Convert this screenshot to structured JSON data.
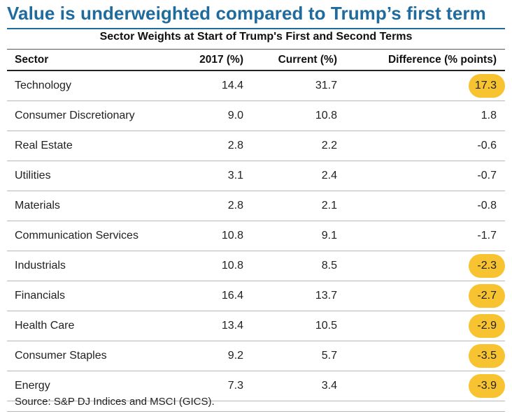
{
  "title": "Value is underweighted compared to Trump’s first term",
  "chart_data": {
    "type": "table",
    "subtitle": "Sector Weights at Start of Trump's First and Second Terms",
    "columns": [
      "Sector",
      "2017 (%)",
      "Current (%)",
      "Difference (% points)"
    ],
    "rows": [
      {
        "sector": "Technology",
        "y2017": "14.4",
        "current": "31.7",
        "diff": "17.3",
        "highlight": true
      },
      {
        "sector": "Consumer Discretionary",
        "y2017": "9.0",
        "current": "10.8",
        "diff": "1.8",
        "highlight": false
      },
      {
        "sector": "Real Estate",
        "y2017": "2.8",
        "current": "2.2",
        "diff": "-0.6",
        "highlight": false
      },
      {
        "sector": "Utilities",
        "y2017": "3.1",
        "current": "2.4",
        "diff": "-0.7",
        "highlight": false
      },
      {
        "sector": "Materials",
        "y2017": "2.8",
        "current": "2.1",
        "diff": "-0.8",
        "highlight": false
      },
      {
        "sector": "Communication Services",
        "y2017": "10.8",
        "current": "9.1",
        "diff": "-1.7",
        "highlight": false
      },
      {
        "sector": "Industrials",
        "y2017": "10.8",
        "current": "8.5",
        "diff": "-2.3",
        "highlight": true
      },
      {
        "sector": "Financials",
        "y2017": "16.4",
        "current": "13.7",
        "diff": "-2.7",
        "highlight": true
      },
      {
        "sector": "Health Care",
        "y2017": "13.4",
        "current": "10.5",
        "diff": "-2.9",
        "highlight": true
      },
      {
        "sector": "Consumer Staples",
        "y2017": "9.2",
        "current": "5.7",
        "diff": "-3.5",
        "highlight": true
      },
      {
        "sector": "Energy",
        "y2017": "7.3",
        "current": "3.4",
        "diff": "-3.9",
        "highlight": true
      }
    ],
    "source": "Source: S&P DJ Indices and MSCI (GICS)."
  },
  "colors": {
    "title": "#1f6b9e",
    "highlight": "#f7c330"
  }
}
